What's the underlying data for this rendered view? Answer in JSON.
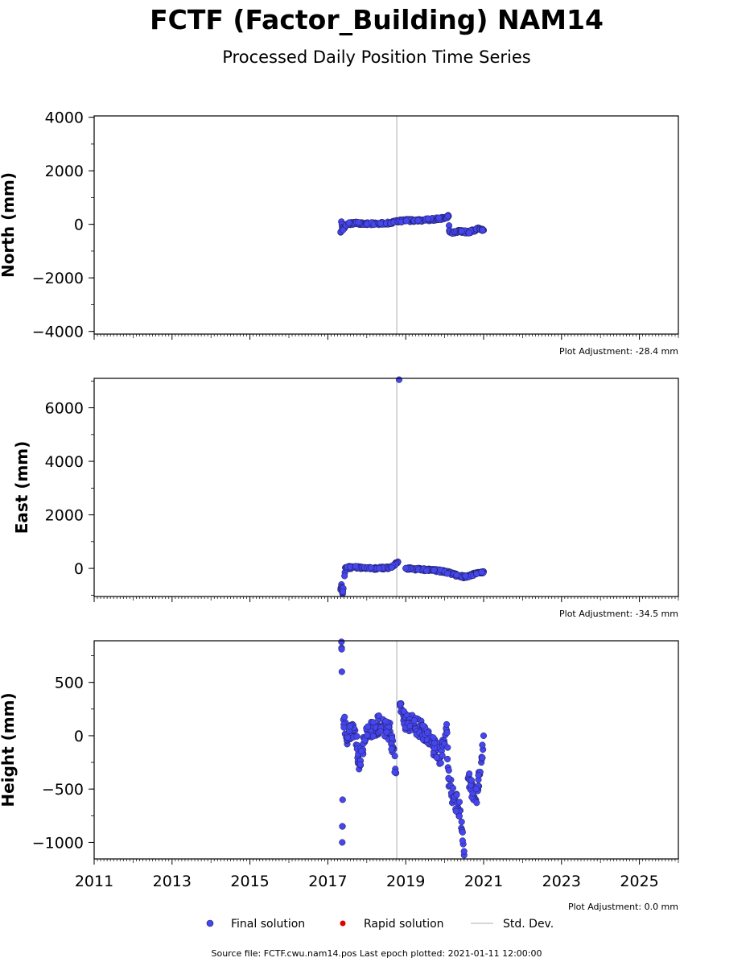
{
  "header": {
    "title": "FCTF (Factor_Building) NAM14",
    "subtitle": "Processed Daily Position Time Series"
  },
  "legend": {
    "final": "Final solution",
    "rapid": "Rapid solution",
    "stddev": "Std. Dev."
  },
  "footer": "Source file: FCTF.cwu.nam14.pos  Last epoch plotted: 2021-01-11 12:00:00",
  "colors": {
    "final": "#4646f0",
    "rapid": "#e00000",
    "stddev": "#c8c8c8",
    "marker_edge": "#1a1a50"
  },
  "chart_data": [
    {
      "type": "scatter",
      "ylabel": "North (mm)",
      "adjustment": "Plot Adjustment: -28.4 mm",
      "xlim": [
        2011,
        2026
      ],
      "ylim": [
        -4100,
        4050
      ],
      "yticks": [
        4000,
        2000,
        0,
        -2000,
        -4000
      ],
      "ytick_labels": [
        "4000",
        "2000",
        "0",
        "−2000",
        "−4000"
      ],
      "xticks": [
        2011,
        2013,
        2015,
        2017,
        2019,
        2021,
        2023,
        2025
      ],
      "xtick_labels": [],
      "series": [
        {
          "x": [
            2017.33,
            2017.35,
            2017.38,
            2017.5,
            2017.7,
            2018.0,
            2018.3,
            2018.6,
            2018.8,
            2019.0,
            2019.2,
            2019.5,
            2019.8,
            2020.0,
            2020.1,
            2020.12,
            2020.2,
            2020.4,
            2020.6,
            2020.8,
            2020.9,
            2021.0
          ],
          "y": [
            -300,
            100,
            -200,
            20,
            40,
            30,
            20,
            50,
            120,
            150,
            140,
            160,
            200,
            230,
            300,
            -250,
            -300,
            -250,
            -300,
            -200,
            -150,
            -220
          ]
        }
      ]
    },
    {
      "type": "scatter",
      "ylabel": "East (mm)",
      "adjustment": "Plot Adjustment: -34.5 mm",
      "xlim": [
        2011,
        2026
      ],
      "ylim": [
        -1050,
        7100
      ],
      "yticks": [
        6000,
        4000,
        2000,
        0
      ],
      "ytick_labels": [
        "6000",
        "4000",
        "2000",
        "0"
      ],
      "xticks": [
        2011,
        2013,
        2015,
        2017,
        2019,
        2021,
        2023,
        2025
      ],
      "xtick_labels": [],
      "series": [
        {
          "x": [
            2017.33,
            2017.35,
            2017.38,
            2017.45,
            2017.7,
            2018.0,
            2018.3,
            2018.6,
            2018.8,
            2018.83,
            2019.0,
            2019.3,
            2019.7,
            2020.0,
            2020.3,
            2020.5,
            2020.8,
            2021.0
          ],
          "y": [
            -800,
            -600,
            -950,
            30,
            40,
            10,
            0,
            30,
            250,
            7050,
            0,
            -30,
            -60,
            -120,
            -250,
            -320,
            -200,
            -120
          ]
        }
      ]
    },
    {
      "type": "scatter",
      "ylabel": "Height (mm)",
      "adjustment": "Plot Adjustment: 0.0 mm",
      "xlim": [
        2011,
        2026
      ],
      "ylim": [
        -1155,
        890
      ],
      "yticks": [
        500,
        0,
        -500,
        -1000
      ],
      "ytick_labels": [
        "500",
        "0",
        "−500",
        "−1000"
      ],
      "xticks": [
        2011,
        2013,
        2015,
        2017,
        2019,
        2021,
        2023,
        2025
      ],
      "xtick_labels": [
        "2011",
        "2013",
        "2015",
        "2017",
        "2019",
        "2021",
        "2023",
        "2025"
      ],
      "series": [
        {
          "x": [
            2017.35,
            2017.36,
            2017.37,
            2017.38,
            2017.4,
            2017.5,
            2017.7,
            2017.8,
            2018.0,
            2018.3,
            2018.6,
            2018.75,
            2018.85,
            2018.95,
            2019.2,
            2019.4,
            2019.7,
            2019.9,
            2020.05,
            2020.1,
            2020.2,
            2020.4,
            2020.45,
            2020.5,
            2020.6,
            2020.8,
            2020.95,
            2021.0
          ],
          "y": [
            880,
            600,
            -1000,
            -600,
            150,
            0,
            50,
            -250,
            50,
            100,
            40,
            -350,
            300,
            150,
            100,
            50,
            -100,
            -200,
            50,
            -400,
            -550,
            -700,
            -900,
            -1120,
            -400,
            -600,
            -200,
            0
          ]
        }
      ]
    }
  ]
}
